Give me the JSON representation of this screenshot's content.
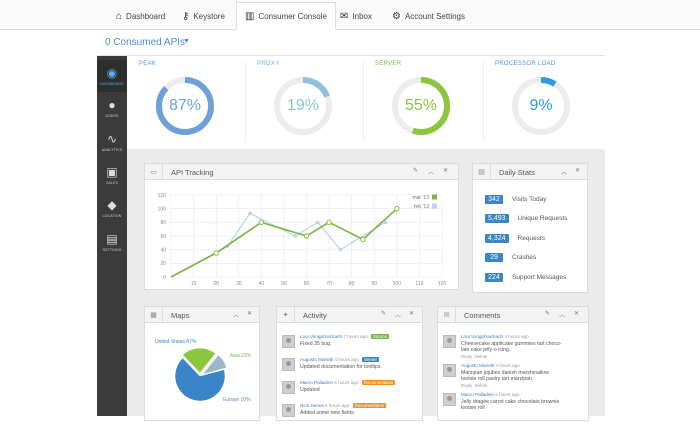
{
  "topnav": {
    "tabs": [
      {
        "label": "Dashboard",
        "icon": "home-icon",
        "glyph": "⌂"
      },
      {
        "label": "Keystore",
        "icon": "key-icon",
        "glyph": "⚷"
      },
      {
        "label": "Consumer Console",
        "icon": "bar-chart-icon",
        "glyph": "▥",
        "active": true
      },
      {
        "label": "Inbox",
        "icon": "envelope-icon",
        "glyph": "✉"
      },
      {
        "label": "Account Settings",
        "icon": "gear-icon",
        "glyph": "⚙"
      }
    ]
  },
  "subheader": {
    "title": "0 Consumed APIs",
    "caret": "▼"
  },
  "sidebar": {
    "items": [
      {
        "label": "DASHBOARD",
        "icon": "dashboard-gauge-icon",
        "glyph": "◉",
        "active": true
      },
      {
        "label": "USERS",
        "icon": "user-icon",
        "glyph": "●"
      },
      {
        "label": "ANALYTICS",
        "icon": "analytics-icon",
        "glyph": "∿"
      },
      {
        "label": "SALES",
        "icon": "cart-icon",
        "glyph": "▣"
      },
      {
        "label": "LOCATION",
        "icon": "map-pin-icon",
        "glyph": "◆"
      },
      {
        "label": "SETTINGS",
        "icon": "settings-icon",
        "glyph": "▤"
      }
    ]
  },
  "gauges": [
    {
      "label": "PEAK",
      "display": "87%",
      "value": 87,
      "color": "#6fa1d8",
      "labelColor": "#5b9bd5"
    },
    {
      "label": "PROXY",
      "display": "19%",
      "value": 19,
      "color": "#8fc1db",
      "labelColor": "#6aaed6"
    },
    {
      "label": "SERVER",
      "display": "55%",
      "value": 55,
      "color": "#8cc63f",
      "labelColor": "#7ab648"
    },
    {
      "label": "PROCESSOR LOAD",
      "display": "9%",
      "value": 9,
      "color": "#2d9be0",
      "labelColor": "#4a90d9"
    }
  ],
  "api_tracking": {
    "title": "API Tracking",
    "chart_data": {
      "type": "line",
      "x": [
        0,
        10,
        20,
        30,
        40,
        50,
        60,
        70,
        80,
        90,
        100,
        110,
        120
      ],
      "y_ticks": [
        0,
        20,
        40,
        60,
        80,
        100,
        120
      ],
      "xlim": [
        0,
        120
      ],
      "ylim": [
        0,
        120
      ],
      "grid": true,
      "legend_position": "top-right",
      "series": [
        {
          "name": "mar '13",
          "color": "#7cb342",
          "marker_color": "#8cc63f",
          "points": [
            [
              0,
              0
            ],
            [
              20,
              35
            ],
            [
              40,
              80
            ],
            [
              60,
              60
            ],
            [
              70,
              80
            ],
            [
              85,
              55
            ],
            [
              100,
              100
            ]
          ]
        },
        {
          "name": "feb '13",
          "color": "#b8d4ef",
          "marker_color": "#b8d4ef",
          "points": [
            [
              0,
              0
            ],
            [
              25,
              45
            ],
            [
              35,
              93
            ],
            [
              55,
              60
            ],
            [
              65,
              80
            ],
            [
              75,
              40
            ],
            [
              95,
              80
            ]
          ]
        }
      ]
    }
  },
  "daily_stats": {
    "title": "Daily Stats",
    "items": [
      {
        "value": "342",
        "label": "Visits Today"
      },
      {
        "value": "5,493",
        "label": "Unique Requests"
      },
      {
        "value": "4,324",
        "label": "Requests"
      },
      {
        "value": "29",
        "label": "Crashes"
      },
      {
        "value": "224",
        "label": "Support Messages"
      }
    ]
  },
  "maps": {
    "title": "Maps",
    "chart_data": {
      "type": "pie",
      "slices": [
        {
          "label": "United States",
          "value": 67,
          "display": "United States 67%",
          "color": "#3a85c7"
        },
        {
          "label": "Asia",
          "value": 23,
          "display": "Asia 23%",
          "color": "#8cc63f"
        },
        {
          "label": "Europe",
          "value": 10,
          "display": "Europe 10%",
          "color": "#9bb7c9"
        }
      ]
    }
  },
  "activity": {
    "title": "Activity",
    "items": [
      {
        "user": "Loui Vongphrachanh",
        "time": "7 hours ago",
        "tag": "Source",
        "tagColor": "#7ab648",
        "text": "Fixed 35 bug."
      },
      {
        "user": "Augusto Marietti",
        "time": "4 hours ago",
        "tag": "Server",
        "tagColor": "#3a85c7",
        "text": "Updated documentation for tooltips."
      },
      {
        "user": "Marco Palladino",
        "time": "6 hours ago",
        "tag": "Documentation",
        "tagColor": "#f0901e",
        "text": "Updated"
      },
      {
        "user": "Nick James",
        "time": "6 hours ago",
        "tag": "Documentation",
        "tagColor": "#f0901e",
        "text": "Added some new fields."
      }
    ]
  },
  "comments": {
    "title": "Comments",
    "reply": "Reply",
    "delete": "Delete",
    "items": [
      {
        "user": "Loui Vongphrachanh",
        "time": "4 hours ago",
        "lines": [
          "Cheesecake applicake gummies tart choco-",
          "late cake jelly-o icing."
        ]
      },
      {
        "user": "Augusto Marietti",
        "time": "4 hours ago",
        "lines": [
          "Marzipan jujubes danish marshmallow",
          "tootsie roll pastry tart marzipan."
        ]
      },
      {
        "user": "Marco Palladino",
        "time": "6 hours ago",
        "lines": [
          "Jelly dragée carrot cake chocolate brownie",
          "tootsie roll"
        ]
      }
    ]
  }
}
